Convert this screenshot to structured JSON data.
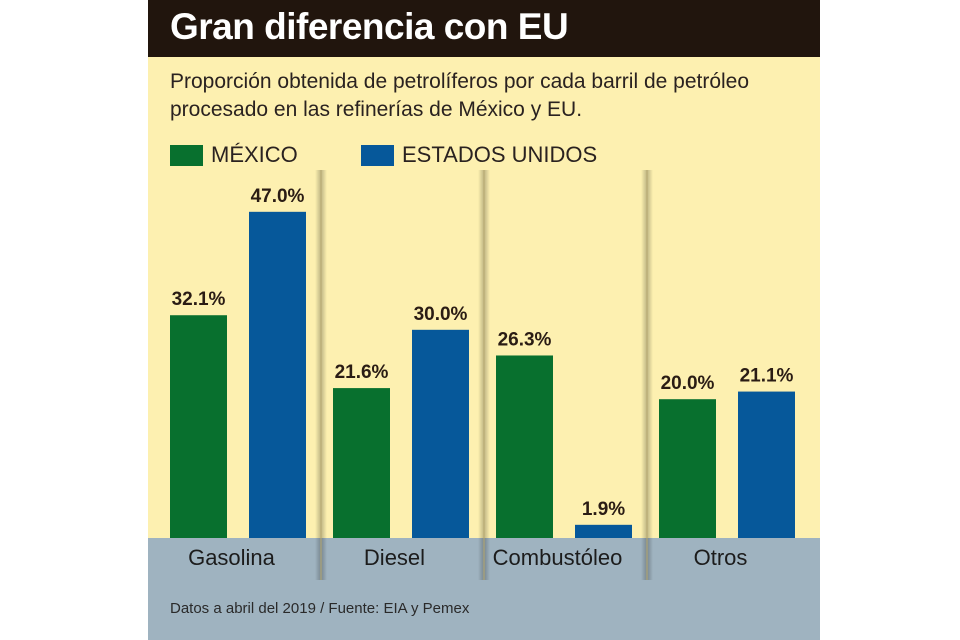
{
  "header": {
    "title": "Gran diferencia con EU",
    "subtitle": "Proporción obtenida de petrolíferos por cada barril de petróleo procesado en las refinerías de México y EU."
  },
  "footer": {
    "source": "Datos a abril del 2019 / Fuente: EIA y Pemex"
  },
  "colors": {
    "mexico": "#08702e",
    "usa": "#06589a",
    "background": "#fdf0b0",
    "title_bar": "#21150d",
    "band": "#9fb3c0"
  },
  "chart_data": {
    "type": "bar",
    "title": "Gran diferencia con EU",
    "subtitle": "Proporción obtenida de petrolíferos por cada barril de petróleo procesado en las refinerías de México y EU.",
    "categories": [
      "Gasolina",
      "Diesel",
      "Combustóleo",
      "Otros"
    ],
    "series": [
      {
        "name": "MÉXICO",
        "values": [
          32.1,
          21.6,
          26.3,
          20.0
        ],
        "labels": [
          "32.1%",
          "21.6%",
          "26.3%",
          "20.0%"
        ]
      },
      {
        "name": "ESTADOS UNIDOS",
        "values": [
          47.0,
          30.0,
          1.9,
          21.1
        ],
        "labels": [
          "47.0%",
          "30.0%",
          "1.9%",
          "21.1%"
        ]
      }
    ],
    "xlabel": "",
    "ylabel": "",
    "ylim": [
      0,
      50
    ],
    "grid": false,
    "legend": "top-left",
    "unit": "%"
  }
}
